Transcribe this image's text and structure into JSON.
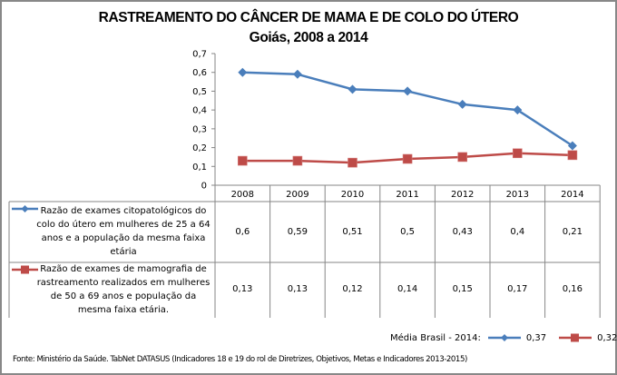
{
  "chart_data": {
    "type": "line",
    "title": "RASTREAMENTO DO CÂNCER DE MAMA E DE COLO DO ÚTERO",
    "subtitle": "Goiás, 2008 a 2014",
    "xlabel": "",
    "ylabel": "",
    "categories": [
      "2008",
      "2009",
      "2010",
      "2011",
      "2012",
      "2013",
      "2014"
    ],
    "ylim": [
      0,
      0.7
    ],
    "yticks": [
      0,
      0.1,
      0.2,
      0.3,
      0.4,
      0.5,
      0.6,
      0.7
    ],
    "ytick_labels": [
      "0",
      "0,1",
      "0,2",
      "0,3",
      "0,4",
      "0,5",
      "0,6",
      "0,7"
    ],
    "grid": false,
    "legend_placement": "data-table-left",
    "series": [
      {
        "name": "Razão de exames citopatológicos do colo do útero em mulheres de 25 a 64 anos e a população da mesma faixa etária",
        "color": "#4A7EBB",
        "marker": "diamond",
        "values": [
          0.6,
          0.59,
          0.51,
          0.5,
          0.43,
          0.4,
          0.21
        ],
        "value_labels": [
          "0,6",
          "0,59",
          "0,51",
          "0,5",
          "0,43",
          "0,4",
          "0,21"
        ]
      },
      {
        "name": "Razão de exames de mamografia de rastreamento realizados em mulheres de 50 a 69 anos e população da mesma faixa etária.",
        "color": "#BE4B48",
        "marker": "square",
        "values": [
          0.13,
          0.13,
          0.12,
          0.14,
          0.15,
          0.17,
          0.16
        ],
        "value_labels": [
          "0,13",
          "0,13",
          "0,12",
          "0,14",
          "0,15",
          "0,17",
          "0,16"
        ]
      }
    ]
  },
  "legend_lines": [
    [
      "Razão de exames citopatológicos do",
      "colo do útero em mulheres de 25 a 64",
      "anos e a população da mesma faixa",
      "etária"
    ],
    [
      "Razão de exames de mamografia de",
      "rastreamento realizados em mulheres",
      "de 50 a 69 anos e população da",
      "mesma faixa etária."
    ]
  ],
  "brazil_average": {
    "label": "Média Brasil - 2014:",
    "series1_value": "0,37",
    "series2_value": "0,32"
  },
  "source": "Fonte: Ministério da Saúde. TabNet DATASUS (Indicadores 18 e 19 do rol de Diretrizes, Objetivos, Metas e Indicadores 2013-2015)"
}
